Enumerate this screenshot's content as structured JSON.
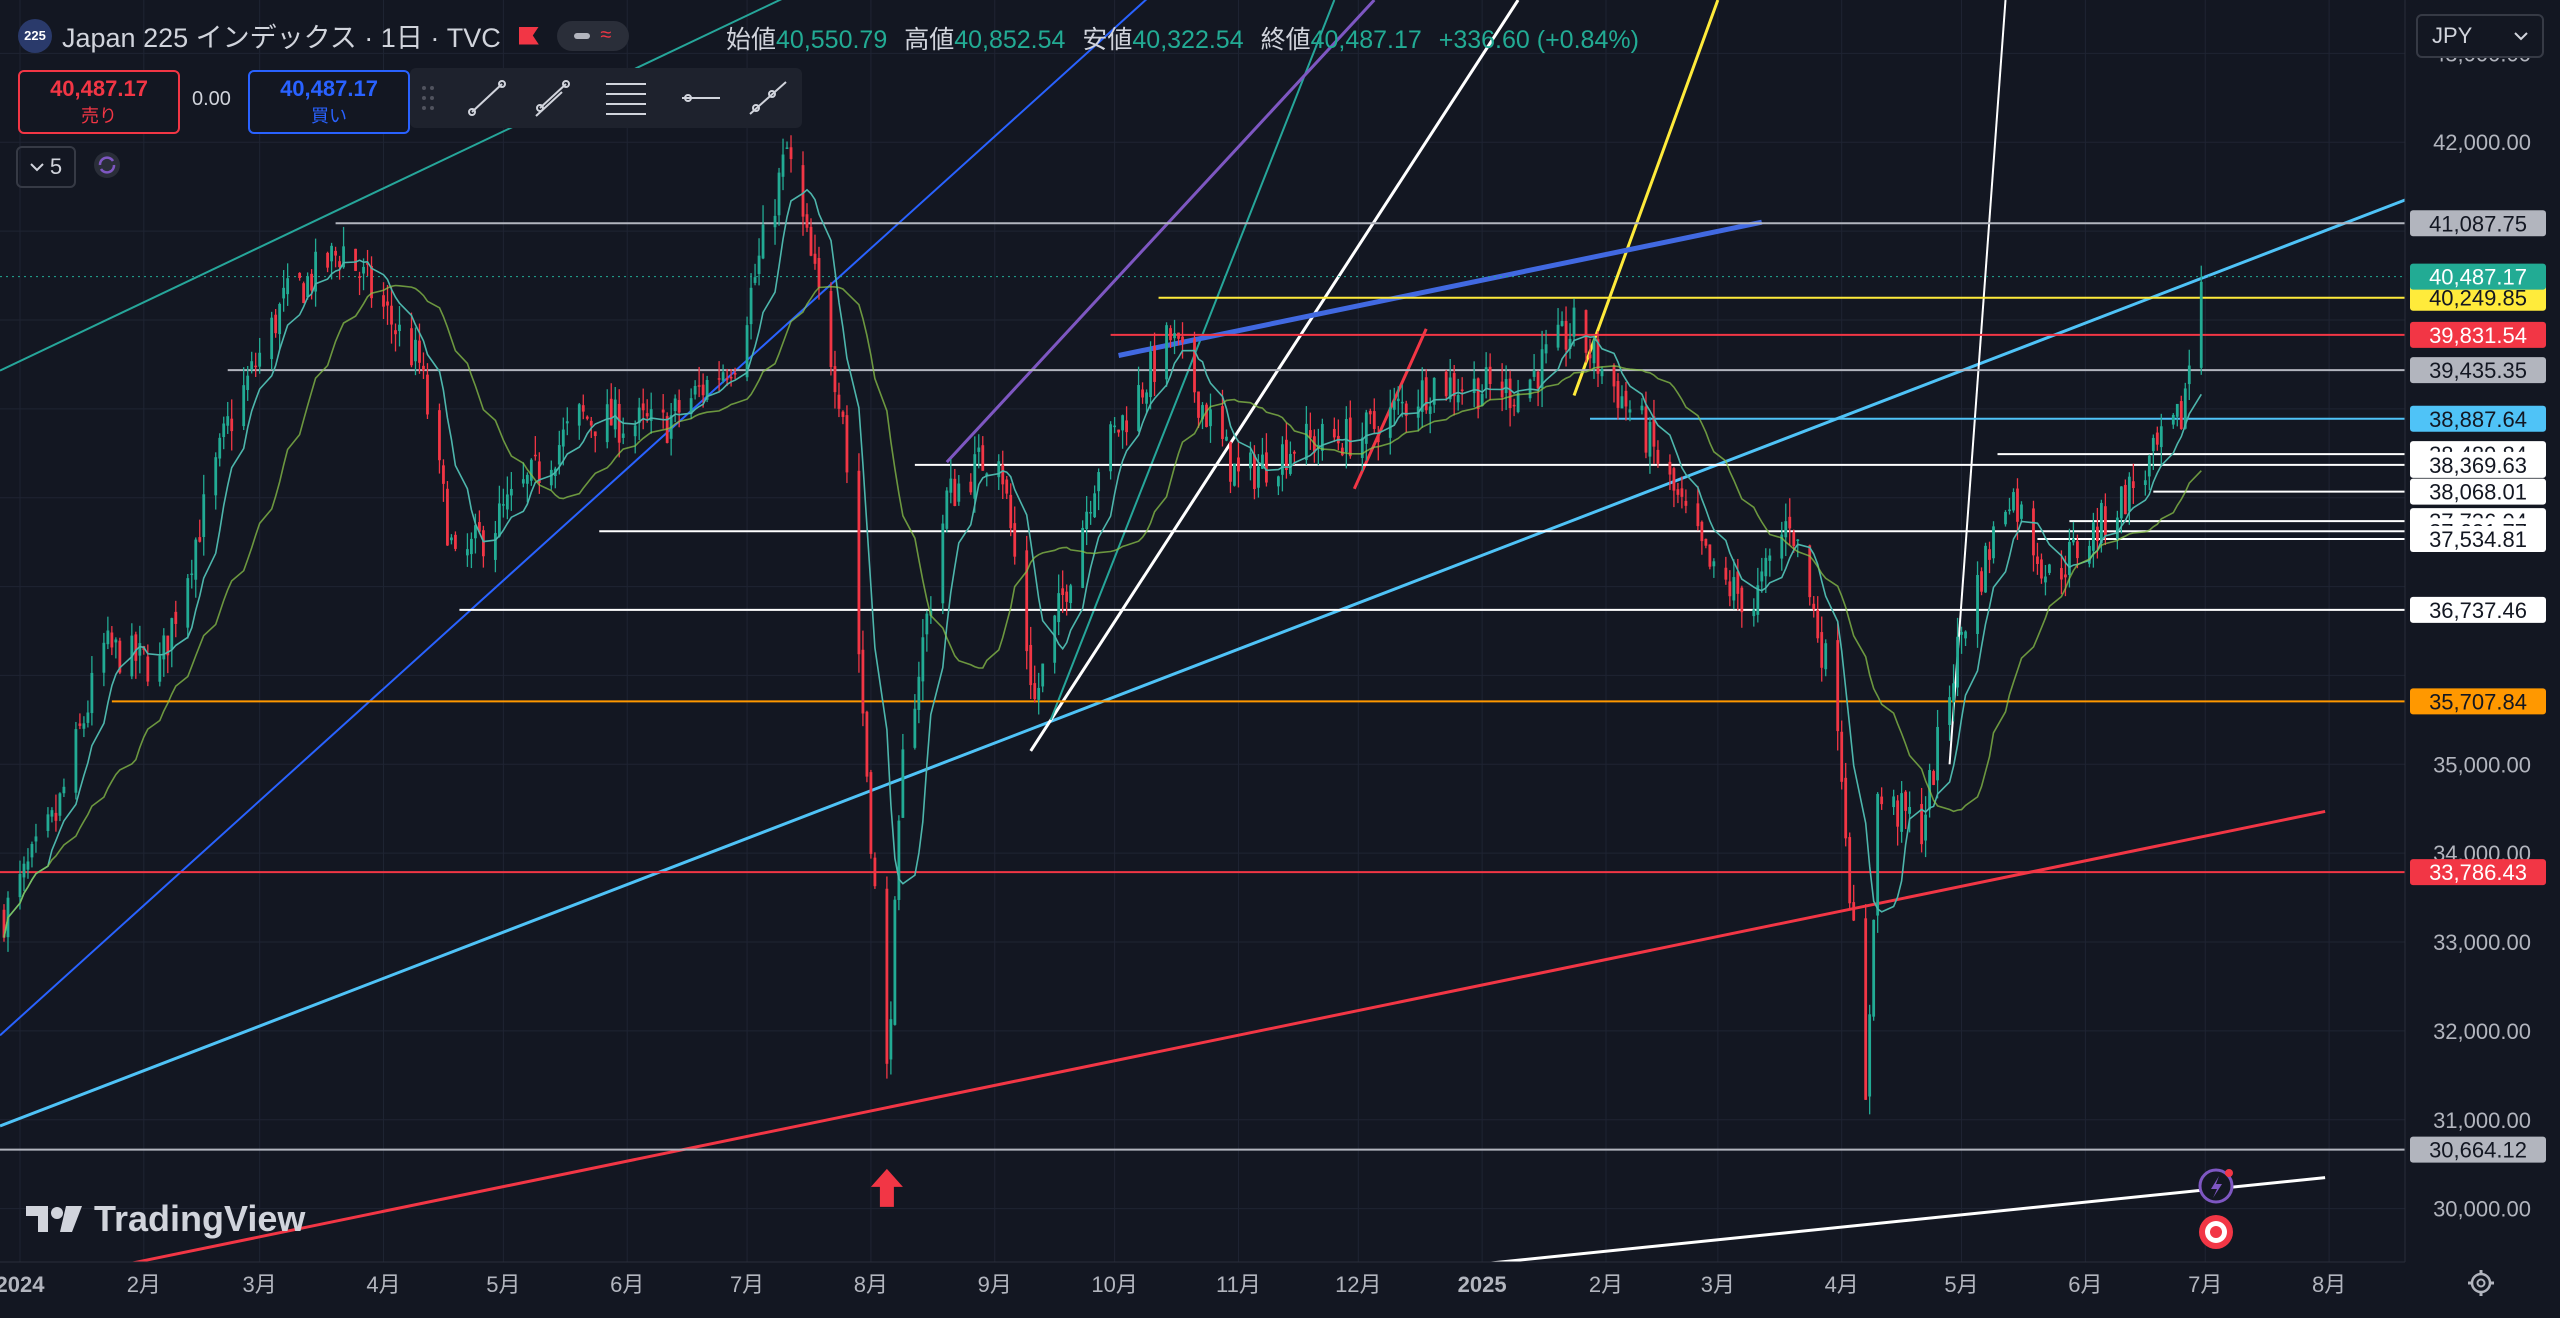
{
  "header": {
    "symbol_badge": "225",
    "title": "Japan 225 インデックス · 1日 · TVC",
    "ohlc": [
      {
        "label": "始値",
        "value": "40,550.79"
      },
      {
        "label": "高値",
        "value": "40,852.54"
      },
      {
        "label": "安値",
        "value": "40,322.54"
      },
      {
        "label": "終値",
        "value": "40,487.17"
      }
    ],
    "change": "+336.60 (+0.84%)"
  },
  "trade": {
    "sell_price": "40,487.17",
    "sell_label": "売り",
    "spread": "0.00",
    "buy_price": "40,487.17",
    "buy_label": "買い"
  },
  "indicators_count": "5",
  "currency": "JPY",
  "brand": "TradingView",
  "colors": {
    "background": "#131722",
    "up": "#22ab94",
    "down": "#f23645",
    "teal_line": "#26a69a",
    "blue_line": "#2962ff",
    "cyan_line": "#4fc3f7",
    "yellow_line": "#ffeb3b",
    "orange_line": "#ff9800",
    "purple_line": "#7e57c2",
    "white_line": "#ffffff",
    "gray_line": "#b2b5be",
    "red_line": "#f23645"
  },
  "icons": [
    "trend-line-icon",
    "parallel-channel-icon",
    "fib-retracement-icon",
    "horizontal-ray-icon",
    "ray-icon",
    "chevron-down-icon",
    "sync-icon",
    "settings-gear-icon",
    "flag-icon",
    "lightning-icon",
    "record-icon",
    "arrow-up-icon"
  ],
  "chart_data": {
    "type": "candlestick",
    "series": [
      {
        "name": "Japan 225",
        "interval": "1D"
      }
    ],
    "x_axis": {
      "type": "date",
      "range": [
        "2023-12-27",
        "2025-08-20"
      ],
      "ticks": [
        {
          "label": "2024",
          "date": "2024-01-01"
        },
        {
          "label": "2月",
          "date": "2024-02-01"
        },
        {
          "label": "3月",
          "date": "2024-03-01"
        },
        {
          "label": "4月",
          "date": "2024-04-01"
        },
        {
          "label": "5月",
          "date": "2024-05-01"
        },
        {
          "label": "6月",
          "date": "2024-06-01"
        },
        {
          "label": "7月",
          "date": "2024-07-01"
        },
        {
          "label": "8月",
          "date": "2024-08-01"
        },
        {
          "label": "9月",
          "date": "2024-09-01"
        },
        {
          "label": "10月",
          "date": "2024-10-01"
        },
        {
          "label": "11月",
          "date": "2024-11-01"
        },
        {
          "label": "12月",
          "date": "2024-12-01"
        },
        {
          "label": "2025",
          "date": "2025-01-01"
        },
        {
          "label": "2月",
          "date": "2025-02-01"
        },
        {
          "label": "3月",
          "date": "2025-03-01"
        },
        {
          "label": "4月",
          "date": "2025-04-01"
        },
        {
          "label": "5月",
          "date": "2025-05-01"
        },
        {
          "label": "6月",
          "date": "2025-06-01"
        },
        {
          "label": "7月",
          "date": "2025-07-01"
        },
        {
          "label": "8月",
          "date": "2025-08-01"
        }
      ]
    },
    "y_axis": {
      "range": [
        29400,
        43600
      ],
      "ticks": [
        {
          "label": "43,000.00",
          "value": 43000
        },
        {
          "label": "42,000.00",
          "value": 42000
        },
        {
          "label": "35,000.00",
          "value": 35000
        },
        {
          "label": "34,000.00",
          "value": 34000
        },
        {
          "label": "33,000.00",
          "value": 33000
        },
        {
          "label": "32,000.00",
          "value": 32000
        },
        {
          "label": "31,000.00",
          "value": 31000
        },
        {
          "label": "30,000.00",
          "value": 30000
        }
      ]
    },
    "price_anchors": [
      {
        "date": "2023-12-28",
        "value": 33300
      },
      {
        "date": "2024-01-10",
        "value": 34400
      },
      {
        "date": "2024-01-22",
        "value": 36300
      },
      {
        "date": "2024-02-05",
        "value": 36100
      },
      {
        "date": "2024-02-22",
        "value": 38800
      },
      {
        "date": "2024-03-07",
        "value": 40200
      },
      {
        "date": "2024-03-22",
        "value": 40800
      },
      {
        "date": "2024-04-10",
        "value": 39500
      },
      {
        "date": "2024-04-19",
        "value": 37200
      },
      {
        "date": "2024-05-08",
        "value": 38200
      },
      {
        "date": "2024-05-20",
        "value": 38900
      },
      {
        "date": "2024-06-10",
        "value": 38800
      },
      {
        "date": "2024-06-28",
        "value": 39600
      },
      {
        "date": "2024-07-11",
        "value": 41900
      },
      {
        "date": "2024-07-25",
        "value": 39000
      },
      {
        "date": "2024-08-05",
        "value": 31500
      },
      {
        "date": "2024-08-09",
        "value": 35000
      },
      {
        "date": "2024-08-20",
        "value": 38000
      },
      {
        "date": "2024-09-02",
        "value": 38600
      },
      {
        "date": "2024-09-11",
        "value": 35700
      },
      {
        "date": "2024-09-27",
        "value": 38400
      },
      {
        "date": "2024-10-15",
        "value": 39800
      },
      {
        "date": "2024-11-01",
        "value": 38200
      },
      {
        "date": "2024-11-15",
        "value": 38600
      },
      {
        "date": "2024-12-02",
        "value": 38700
      },
      {
        "date": "2024-12-20",
        "value": 39300
      },
      {
        "date": "2025-01-10",
        "value": 39200
      },
      {
        "date": "2025-01-24",
        "value": 39900
      },
      {
        "date": "2025-02-10",
        "value": 38800
      },
      {
        "date": "2025-02-28",
        "value": 37100
      },
      {
        "date": "2025-03-10",
        "value": 36800
      },
      {
        "date": "2025-03-19",
        "value": 37800
      },
      {
        "date": "2025-03-31",
        "value": 35600
      },
      {
        "date": "2025-04-07",
        "value": 31100
      },
      {
        "date": "2025-04-10",
        "value": 34600
      },
      {
        "date": "2025-04-21",
        "value": 34300
      },
      {
        "date": "2025-05-01",
        "value": 36500
      },
      {
        "date": "2025-05-13",
        "value": 38100
      },
      {
        "date": "2025-05-23",
        "value": 37100
      },
      {
        "date": "2025-06-05",
        "value": 37700
      },
      {
        "date": "2025-06-16",
        "value": 38300
      },
      {
        "date": "2025-06-25",
        "value": 38900
      },
      {
        "date": "2025-06-30",
        "value": 40487
      }
    ],
    "horizontal_lines": [
      {
        "value": 41087.75,
        "label": "41,087.75",
        "color": "#b2b5be",
        "from": "2024-03-20",
        "label_bg": "#b2b5be",
        "label_fg": "#131722"
      },
      {
        "value": 40249.85,
        "label": "40,249.85",
        "color": "#ffeb3b",
        "from": "2024-10-12",
        "label_bg": "#ffeb3b",
        "label_fg": "#131722"
      },
      {
        "value": 39831.54,
        "label": "39,831.54",
        "color": "#f23645",
        "from": "2024-09-30",
        "label_bg": "#f23645",
        "label_fg": "#ffffff"
      },
      {
        "value": 39435.35,
        "label": "39,435.35",
        "color": "#b2b5be",
        "from": "2024-02-22",
        "label_bg": "#b2b5be",
        "label_fg": "#131722"
      },
      {
        "value": 38887.64,
        "label": "38,887.64",
        "color": "#4fc3f7",
        "from": "2025-01-28",
        "label_bg": "#4fc3f7",
        "label_fg": "#131722"
      },
      {
        "value": 38489.84,
        "label": "38,489.84",
        "color": "#ffffff",
        "from": "2025-05-10",
        "label_bg": "#ffffff",
        "label_fg": "#131722"
      },
      {
        "value": 38369.63,
        "label": "38,369.63",
        "color": "#ffffff",
        "from": "2024-08-12",
        "label_bg": "#ffffff",
        "label_fg": "#131722"
      },
      {
        "value": 38068.01,
        "label": "38,068.01",
        "color": "#ffffff",
        "from": "2025-06-18",
        "label_bg": "#ffffff",
        "label_fg": "#131722"
      },
      {
        "value": 37736.04,
        "label": "37,736.04",
        "color": "#ffffff",
        "from": "2025-05-28",
        "label_bg": "#ffffff",
        "label_fg": "#131722"
      },
      {
        "value": 37621.77,
        "label": "37,621.77",
        "color": "#ffffff",
        "from": "2024-05-25",
        "label_bg": "#ffffff",
        "label_fg": "#131722"
      },
      {
        "value": 37534.81,
        "label": "37,534.81",
        "color": "#ffffff",
        "from": "2025-05-20",
        "label_bg": "#ffffff",
        "label_fg": "#131722"
      },
      {
        "value": 36737.46,
        "label": "36,737.46",
        "color": "#ffffff",
        "from": "2024-04-20",
        "label_bg": "#ffffff",
        "label_fg": "#131722"
      },
      {
        "value": 35707.84,
        "label": "35,707.84",
        "color": "#ff9800",
        "from": "2024-01-24",
        "label_bg": "#ff9800",
        "label_fg": "#131722"
      },
      {
        "value": 33786.43,
        "label": "33,786.43",
        "color": "#f23645",
        "from": "2023-12-27",
        "label_bg": "#f23645",
        "label_fg": "#ffffff"
      },
      {
        "value": 30664.12,
        "label": "30,664.12",
        "color": "#b2b5be",
        "from": "2023-12-27",
        "label_bg": "#b2b5be",
        "label_fg": "#131722"
      }
    ],
    "last_price": {
      "value": 40487.17,
      "label": "40,487.17",
      "color": "#22ab94"
    },
    "trend_lines": [
      {
        "color": "#26a69a",
        "width": 2,
        "p1": [
          "2023-12-27",
          39430
        ],
        "p2": [
          "2024-08-10",
          44280
        ]
      },
      {
        "color": "#2962ff",
        "width": 2,
        "p1": [
          "2023-12-27",
          31950
        ],
        "p2": [
          "2024-10-10",
          43650
        ]
      },
      {
        "color": "#4fc3f7",
        "width": 3,
        "p1": [
          "2023-12-27",
          30930
        ],
        "p2": [
          "2025-08-20",
          41350
        ]
      },
      {
        "color": "#f23645",
        "width": 3,
        "p1": [
          "2024-01-25",
          29350
        ],
        "p2": [
          "2025-07-31",
          34470
        ]
      },
      {
        "color": "#ffffff",
        "width": 3,
        "p1": [
          "2024-12-15",
          29300
        ],
        "p2": [
          "2025-07-31",
          30350
        ]
      },
      {
        "color": "#ffffff",
        "width": 3,
        "p1": [
          "2024-09-10",
          35150
        ],
        "p2": [
          "2025-01-10",
          43600
        ]
      },
      {
        "color": "#26a69a",
        "width": 2,
        "p1": [
          "2024-09-15",
          35500
        ],
        "p2": [
          "2024-11-25",
          43600
        ]
      },
      {
        "color": "#7e57c2",
        "width": 3,
        "p1": [
          "2024-08-20",
          38400
        ],
        "p2": [
          "2024-12-05",
          43600
        ]
      },
      {
        "color": "#ffeb3b",
        "width": 3,
        "p1": [
          "2025-01-24",
          39150
        ],
        "p2": [
          "2025-03-01",
          43600
        ]
      },
      {
        "color": "#ffffff",
        "width": 2,
        "p1": [
          "2025-04-28",
          35000
        ],
        "p2": [
          "2025-05-12",
          43600
        ]
      },
      {
        "color": "#4169e1",
        "width": 5,
        "p1": [
          "2024-10-02",
          39600
        ],
        "p2": [
          "2025-03-12",
          41100
        ]
      },
      {
        "color": "#f23645",
        "width": 3,
        "p1": [
          "2024-11-30",
          38100
        ],
        "p2": [
          "2024-12-18",
          39900
        ]
      }
    ],
    "markers": [
      {
        "type": "arrow-up",
        "date": "2024-08-05",
        "value": 30200,
        "color": "#f23645"
      }
    ]
  }
}
